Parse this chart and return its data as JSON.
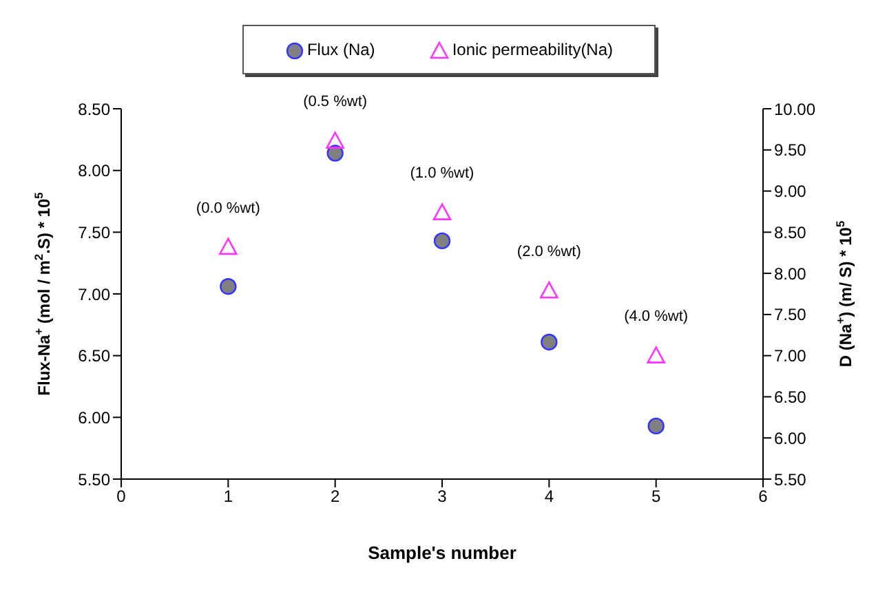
{
  "chart_data": {
    "type": "scatter",
    "xlabel": "Sample's number",
    "ylabel": "Flux-Na$^{+}$ (mol / m$^{2}$.S) * 10$^{5}$",
    "y2label": "D (Na$^{+}$) (m/ S) * 10$^{5}$",
    "x": [
      1,
      2,
      3,
      4,
      5
    ],
    "series": [
      {
        "name": "Flux (Na)",
        "color": "#808080",
        "marker": "circle",
        "values": [
          7.06,
          8.14,
          7.43,
          6.61,
          5.93
        ]
      },
      {
        "name": "Ionic permeability(Na)",
        "color": "#ff33ff",
        "marker": "triangle",
        "axis": "y2",
        "values": [
          8.32,
          9.61,
          8.74,
          7.79,
          7.0
        ]
      }
    ],
    "annotations": [
      "(0.0 %wt)",
      "(0.5 %wt)",
      "(1.0 %wt)",
      "(2.0 %wt)",
      "(4.0 %wt)"
    ],
    "xlim": [
      0,
      6
    ],
    "xticks": [
      0,
      1,
      2,
      3,
      4,
      5,
      6
    ],
    "ylim": [
      5.5,
      8.5
    ],
    "yticks": [
      {
        "value": 5.5,
        "label": "5.50"
      },
      {
        "value": 6,
        "label": "6.00"
      },
      {
        "value": 6.5,
        "label": "6.50"
      },
      {
        "value": 7,
        "label": "7.00"
      },
      {
        "value": 7.5,
        "label": "7.50"
      },
      {
        "value": 8,
        "label": "8.00"
      },
      {
        "value": 8.5,
        "label": "8.50"
      }
    ],
    "y2lim": [
      5.5,
      10
    ],
    "y2ticks": [
      {
        "value": 5.5,
        "label": "5.50"
      },
      {
        "value": 6,
        "label": "6.00"
      },
      {
        "value": 6.5,
        "label": "6.50"
      },
      {
        "value": 7,
        "label": "7.00"
      },
      {
        "value": 7.5,
        "label": "7.50"
      },
      {
        "value": 8,
        "label": "8.00"
      },
      {
        "value": 8.5,
        "label": "8.50"
      },
      {
        "value": 9,
        "label": "9.00"
      },
      {
        "value": 9.5,
        "label": "9.50"
      },
      {
        "value": 10,
        "label": "10.00"
      }
    ],
    "legend": "top",
    "grid": false
  }
}
